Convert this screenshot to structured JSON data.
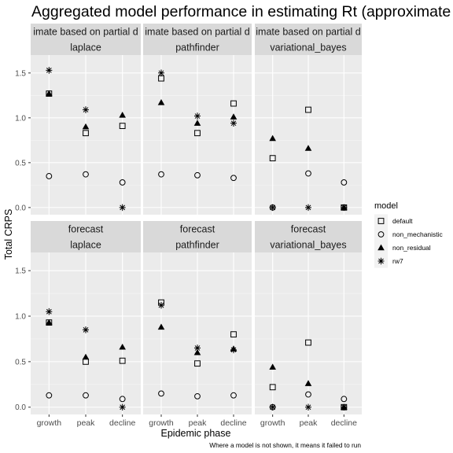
{
  "chart_data": {
    "type": "scatter",
    "title": "Aggregated model performance in estimating Rt (approximate meth",
    "xlabel": "Epidemic phase",
    "ylabel": "Total CRPS",
    "caption": "Where a model is not shown, it means it failed to run",
    "categories": [
      "growth",
      "peak",
      "decline"
    ],
    "ylim": [
      -0.08,
      1.7
    ],
    "yticks": [
      "0.0",
      "0.5",
      "1.0",
      "1.5"
    ],
    "grid": true,
    "legend": {
      "title": "model",
      "position": "right",
      "entries": [
        {
          "name": "default",
          "shape": "square"
        },
        {
          "name": "non_mechanistic",
          "shape": "circle"
        },
        {
          "name": "non_residual",
          "shape": "triangle"
        },
        {
          "name": "rw7",
          "shape": "asterisk"
        }
      ]
    },
    "row_strips": [
      "imate based on partial d",
      "forecast"
    ],
    "col_strips": [
      "laplace",
      "pathfinder",
      "variational_bayes"
    ],
    "panels": [
      {
        "row": 0,
        "col": 0,
        "series": [
          {
            "name": "default",
            "values": [
              1.27,
              0.83,
              0.91
            ]
          },
          {
            "name": "non_mechanistic",
            "values": [
              0.35,
              0.37,
              0.28
            ]
          },
          {
            "name": "non_residual",
            "values": [
              1.27,
              0.9,
              1.03
            ]
          },
          {
            "name": "rw7",
            "values": [
              1.53,
              1.09,
              0.0
            ]
          }
        ]
      },
      {
        "row": 0,
        "col": 1,
        "series": [
          {
            "name": "default",
            "values": [
              1.44,
              0.83,
              1.16
            ]
          },
          {
            "name": "non_mechanistic",
            "values": [
              0.37,
              0.36,
              0.33
            ]
          },
          {
            "name": "non_residual",
            "values": [
              1.17,
              0.94,
              1.01
            ]
          },
          {
            "name": "rw7",
            "values": [
              1.5,
              1.02,
              0.94
            ]
          }
        ]
      },
      {
        "row": 0,
        "col": 2,
        "series": [
          {
            "name": "default",
            "values": [
              0.55,
              1.09,
              0.0
            ]
          },
          {
            "name": "non_mechanistic",
            "values": [
              0.0,
              0.38,
              0.28
            ]
          },
          {
            "name": "non_residual",
            "values": [
              0.77,
              0.66,
              0.0
            ]
          },
          {
            "name": "rw7",
            "values": [
              0.0,
              0.0,
              0.0
            ]
          }
        ]
      },
      {
        "row": 1,
        "col": 0,
        "series": [
          {
            "name": "default",
            "values": [
              0.93,
              0.5,
              0.51
            ]
          },
          {
            "name": "non_mechanistic",
            "values": [
              0.13,
              0.13,
              0.09
            ]
          },
          {
            "name": "non_residual",
            "values": [
              0.93,
              0.55,
              0.66
            ]
          },
          {
            "name": "rw7",
            "values": [
              1.05,
              0.85,
              0.0
            ]
          }
        ]
      },
      {
        "row": 1,
        "col": 1,
        "series": [
          {
            "name": "default",
            "values": [
              1.15,
              0.48,
              0.8
            ]
          },
          {
            "name": "non_mechanistic",
            "values": [
              0.15,
              0.12,
              0.13
            ]
          },
          {
            "name": "non_residual",
            "values": [
              0.88,
              0.6,
              0.64
            ]
          },
          {
            "name": "rw7",
            "values": [
              1.12,
              0.65,
              0.63
            ]
          }
        ]
      },
      {
        "row": 1,
        "col": 2,
        "series": [
          {
            "name": "default",
            "values": [
              0.22,
              0.71,
              0.0
            ]
          },
          {
            "name": "non_mechanistic",
            "values": [
              0.0,
              0.14,
              0.09
            ]
          },
          {
            "name": "non_residual",
            "values": [
              0.44,
              0.26,
              0.0
            ]
          },
          {
            "name": "rw7",
            "values": [
              0.0,
              0.0,
              0.0
            ]
          }
        ]
      }
    ]
  }
}
